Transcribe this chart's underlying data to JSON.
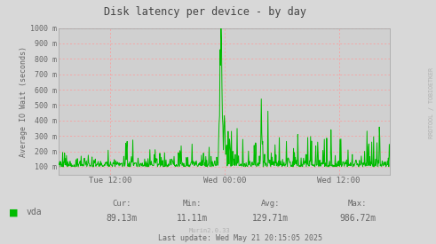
{
  "title": "Disk latency per device - by day",
  "ylabel": "Average IO Wait (seconds)",
  "bg_color": "#d8d8d8",
  "plot_bg_color": "#d0d0d0",
  "grid_color": "#ff9999",
  "line_color": "#00bb00",
  "text_color": "#666666",
  "title_color": "#444444",
  "xtick_labels": [
    "Tue 12:00",
    "Wed 00:00",
    "Wed 12:00"
  ],
  "xtick_positions": [
    0.155,
    0.5,
    0.845
  ],
  "ytick_labels": [
    "100 m",
    "200 m",
    "300 m",
    "400 m",
    "500 m",
    "600 m",
    "700 m",
    "800 m",
    "900 m",
    "1000 m"
  ],
  "ytick_values": [
    100,
    200,
    300,
    400,
    500,
    600,
    700,
    800,
    900,
    1000
  ],
  "ymin": 50,
  "ymax": 1000,
  "legend_label": "vda",
  "legend_color": "#00bb00",
  "stats_cur": "Cur:",
  "stats_cur_val": "89.13m",
  "stats_min": "Min:",
  "stats_min_val": "11.11m",
  "stats_avg": "Avg:",
  "stats_avg_val": "129.71m",
  "stats_max": "Max:",
  "stats_max_val": "986.72m",
  "last_update": "Last update: Wed May 21 20:15:05 2025",
  "watermark": "Murin2.0.33",
  "right_label": "RRDTOOL / TOBIOETKER",
  "vline_positions": [
    0.155,
    0.5,
    0.845
  ],
  "hline_values": [
    100,
    200,
    300,
    400,
    500,
    600,
    700,
    800,
    900,
    1000
  ]
}
